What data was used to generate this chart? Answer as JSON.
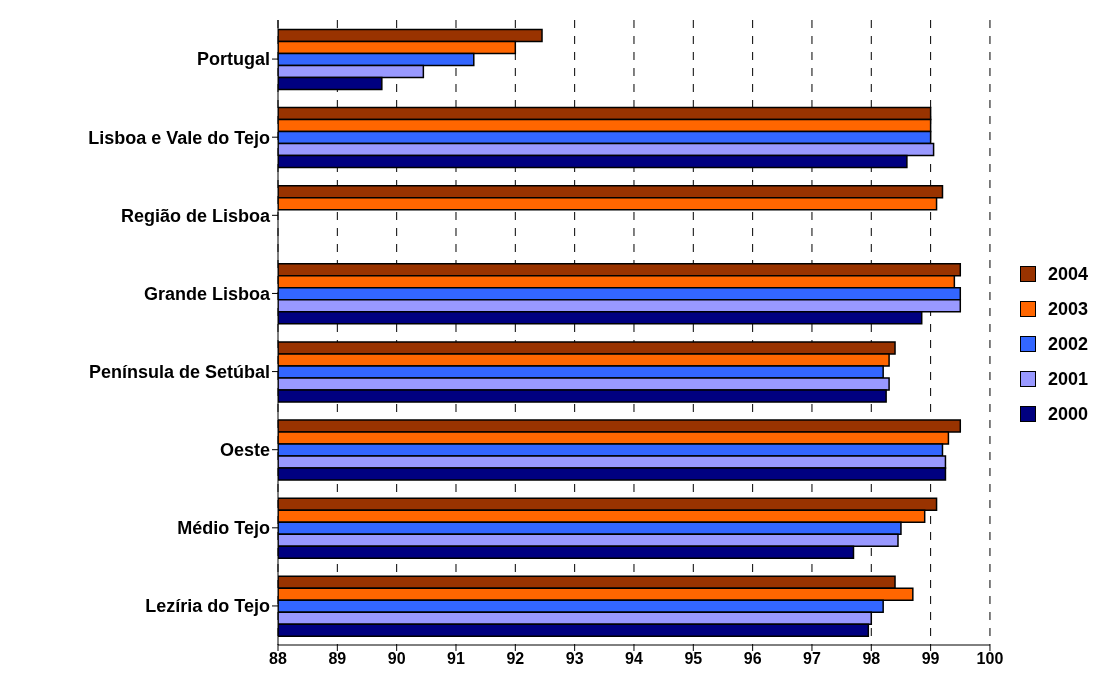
{
  "chart_data": {
    "type": "bar",
    "orientation": "horizontal",
    "categories": [
      "Portugal",
      "Lisboa e Vale do Tejo",
      "Região de Lisboa",
      "Grande Lisboa",
      "Península de Setúbal",
      "Oeste",
      "Médio Tejo",
      "Lezíria do Tejo"
    ],
    "series": [
      {
        "name": "2004",
        "color": "#993300",
        "values": [
          92.45,
          99.0,
          99.2,
          99.5,
          98.4,
          99.5,
          99.1,
          98.4
        ]
      },
      {
        "name": "2003",
        "color": "#ff6600",
        "values": [
          92.0,
          99.0,
          99.1,
          99.4,
          98.3,
          99.3,
          98.9,
          98.7
        ]
      },
      {
        "name": "2002",
        "color": "#3366ff",
        "values": [
          91.3,
          99.0,
          null,
          99.5,
          98.2,
          99.2,
          98.5,
          98.2
        ]
      },
      {
        "name": "2001",
        "color": "#9999ff",
        "values": [
          90.45,
          99.05,
          null,
          99.5,
          98.3,
          99.25,
          98.45,
          98.0
        ]
      },
      {
        "name": "2000",
        "color": "#000080",
        "values": [
          89.75,
          98.6,
          null,
          98.85,
          98.25,
          99.25,
          97.7,
          97.95
        ]
      }
    ],
    "xlim": [
      88,
      100
    ],
    "xticks": [
      88,
      89,
      90,
      91,
      92,
      93,
      94,
      95,
      96,
      97,
      98,
      99,
      100
    ],
    "grid": "x",
    "legend": "right"
  }
}
